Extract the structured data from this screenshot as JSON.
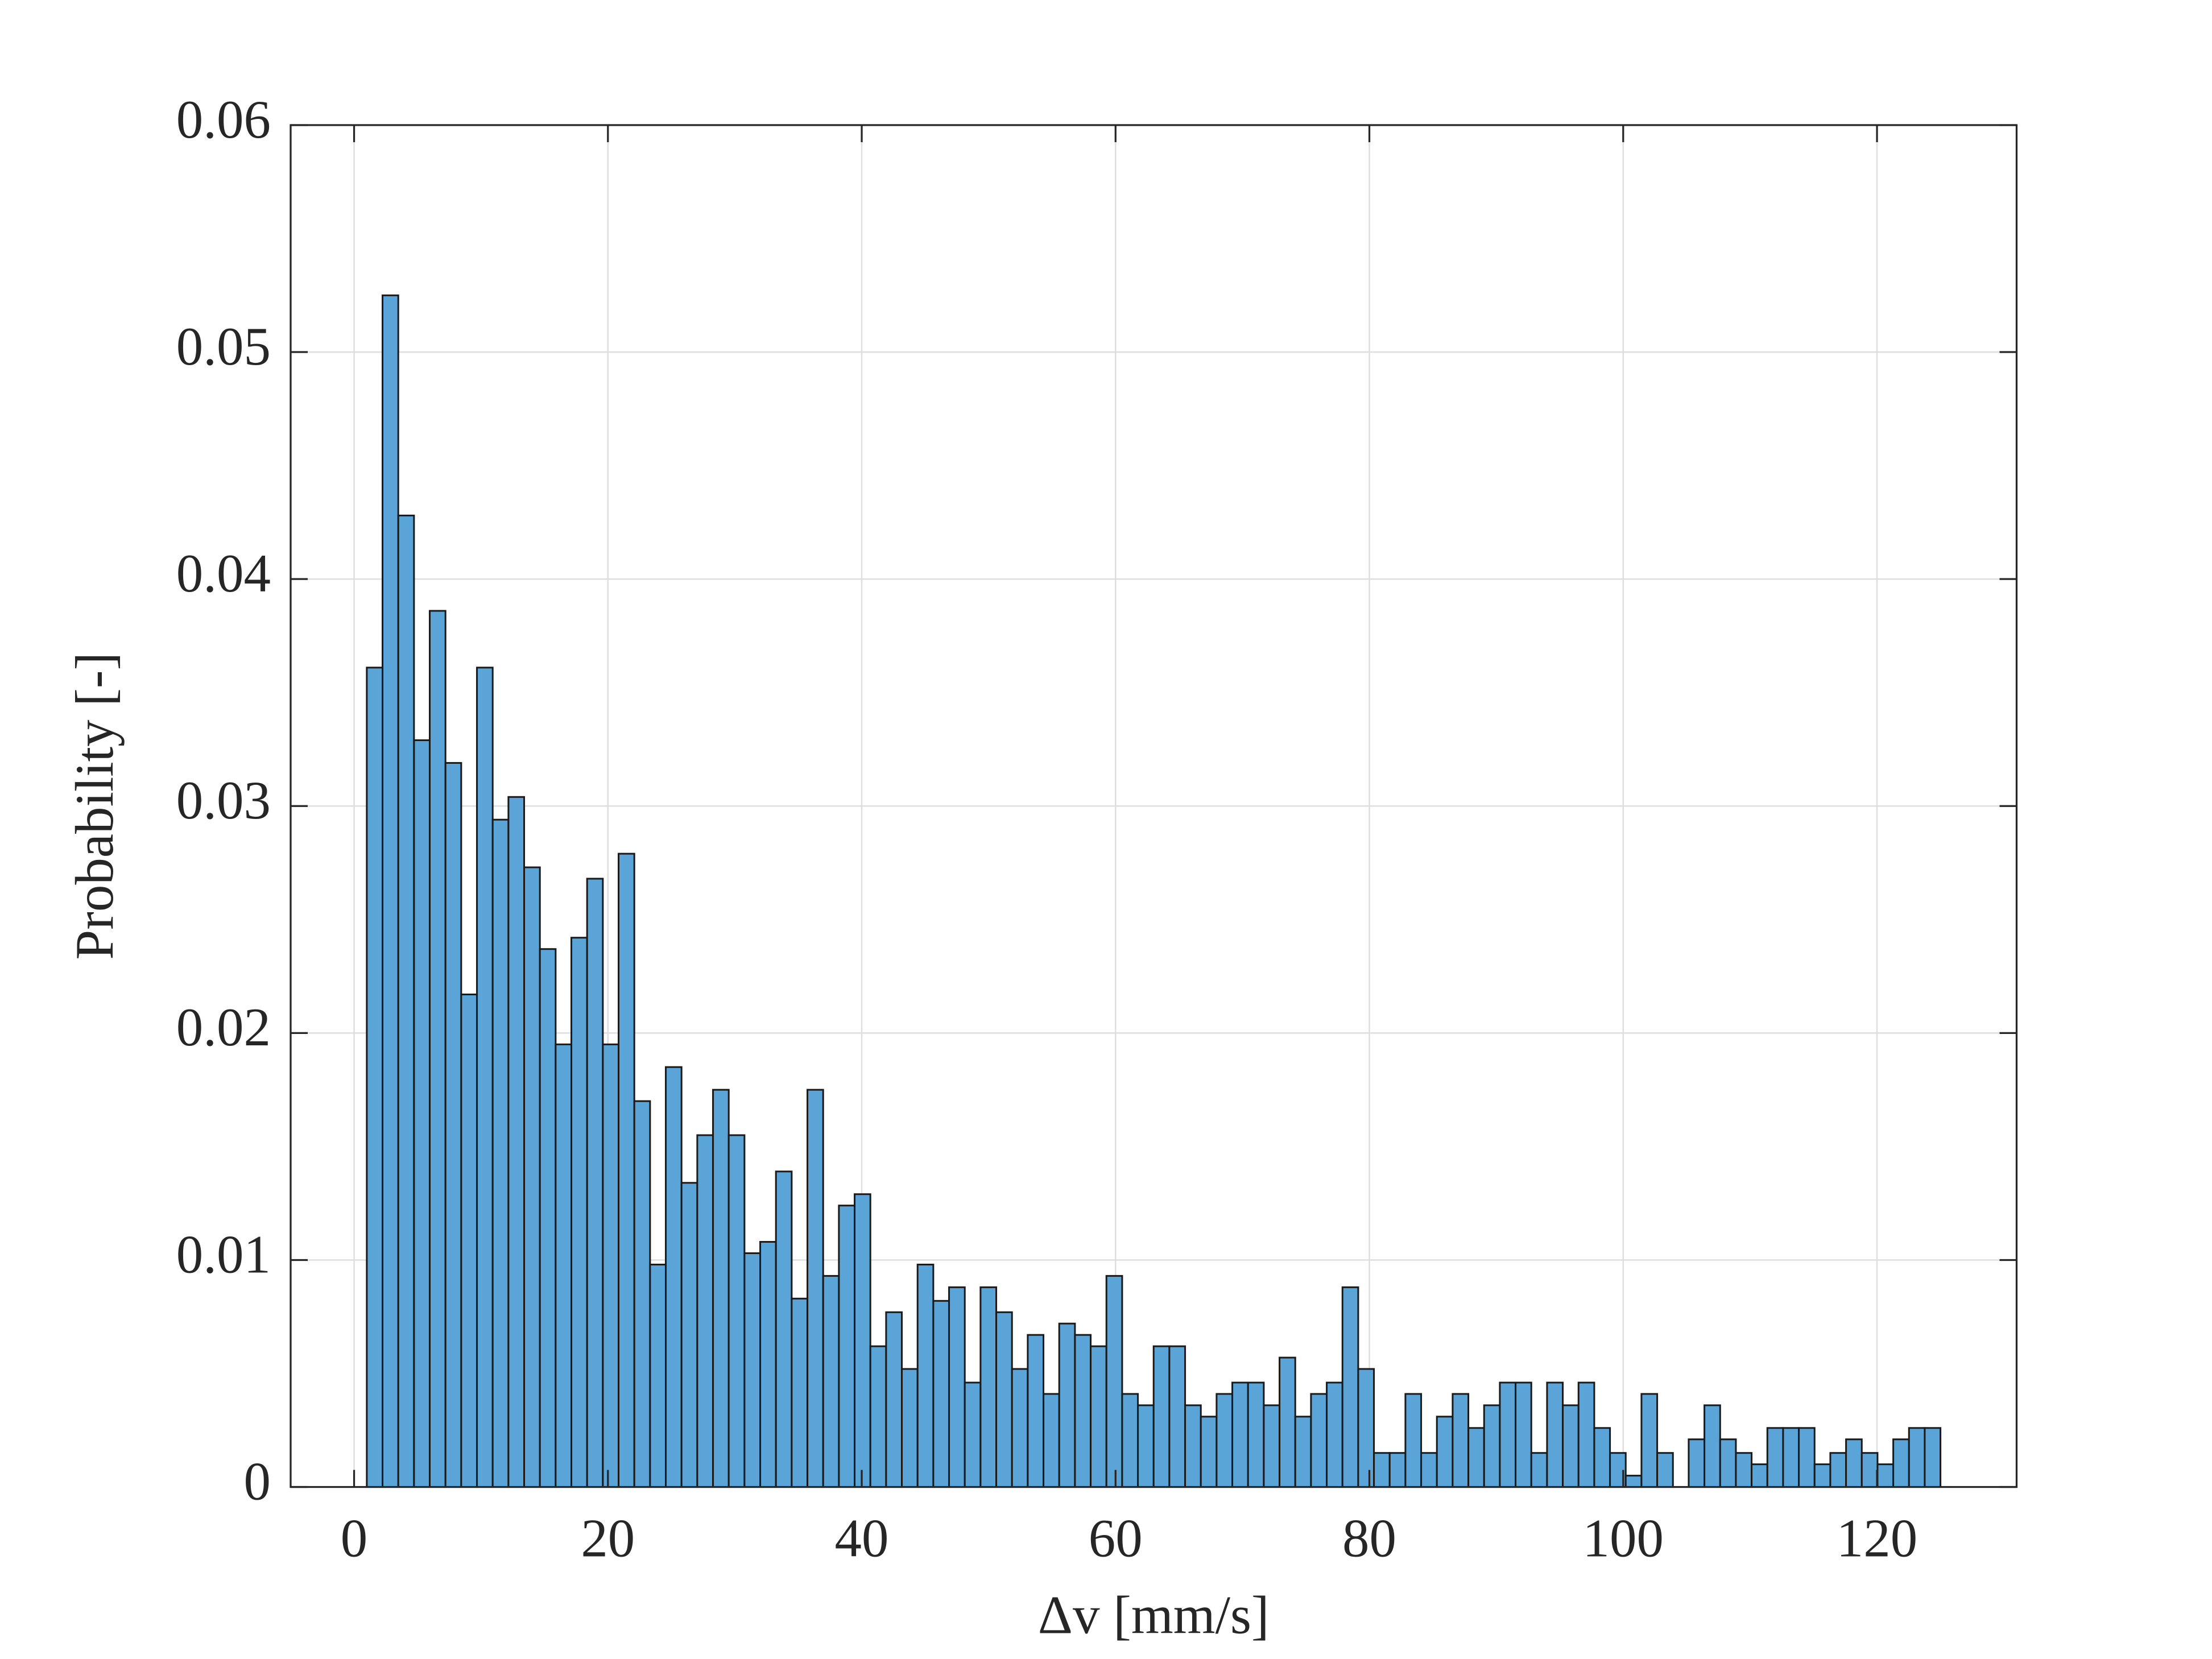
{
  "chart_data": {
    "type": "histogram",
    "xlabel": "Δv [mm/s]",
    "ylabel": "Probability [-]",
    "color": "#5ba4d7",
    "edgecolor": "#1a1a1a",
    "grid": true,
    "xlim": [
      -5,
      131
    ],
    "ylim": [
      0,
      0.06
    ],
    "xticks": [
      0,
      20,
      40,
      60,
      80,
      100,
      120
    ],
    "yticks": [
      0,
      0.01,
      0.02,
      0.03,
      0.04,
      0.05,
      0.06
    ],
    "bins": [
      1,
      2.24,
      3.48,
      4.72,
      5.96,
      7.2,
      8.44,
      9.68,
      10.92,
      12.16,
      13.4,
      14.64,
      15.88,
      17.12,
      18.36,
      19.6,
      20.84,
      22.08,
      23.32,
      24.56,
      25.8,
      27.04,
      28.28,
      29.52,
      30.76,
      32,
      33.24,
      34.48,
      35.72,
      36.96,
      38.2,
      39.44,
      40.68,
      41.92,
      43.16,
      44.4,
      45.64,
      46.88,
      48.12,
      49.36,
      50.6,
      51.84,
      53.08,
      54.32,
      55.56,
      56.8,
      58.04,
      59.28,
      60.52,
      61.76,
      63,
      64.24,
      65.48,
      66.72,
      67.96,
      69.2,
      70.44,
      71.68,
      72.92,
      74.16,
      75.4,
      76.64,
      77.88,
      79.12,
      80.36,
      81.6,
      82.84,
      84.08,
      85.32,
      86.56,
      87.8,
      89.04,
      90.28,
      91.52,
      92.76,
      94,
      95.24,
      96.48,
      97.72,
      98.96,
      100.2,
      101.44,
      102.68,
      103.92,
      105.16,
      106.4,
      107.64,
      108.88,
      110.12,
      111.36,
      112.6,
      113.84,
      115.08,
      116.32,
      117.56,
      118.8,
      120.04,
      121.28,
      122.52,
      123.76,
      125
    ],
    "values": [
      0.0361,
      0.0525,
      0.0428,
      0.0329,
      0.0386,
      0.0319,
      0.0217,
      0.0361,
      0.0294,
      0.0304,
      0.0273,
      0.0237,
      0.0195,
      0.0242,
      0.0268,
      0.0195,
      0.0279,
      0.017,
      0.0098,
      0.0185,
      0.0134,
      0.0155,
      0.0175,
      0.0155,
      0.0103,
      0.0108,
      0.0139,
      0.0083,
      0.0175,
      0.0093,
      0.0124,
      0.0129,
      0.0062,
      0.0077,
      0.0052,
      0.0098,
      0.0082,
      0.0088,
      0.0046,
      0.0088,
      0.0077,
      0.0052,
      0.0067,
      0.0041,
      0.0072,
      0.0067,
      0.0062,
      0.0093,
      0.0041,
      0.0036,
      0.0062,
      0.0062,
      0.0036,
      0.0031,
      0.0041,
      0.0046,
      0.0046,
      0.0036,
      0.0057,
      0.0031,
      0.0041,
      0.0046,
      0.0088,
      0.0052,
      0.0015,
      0.0015,
      0.0041,
      0.0015,
      0.0031,
      0.0041,
      0.0026,
      0.0036,
      0.0046,
      0.0046,
      0.0015,
      0.0046,
      0.0036,
      0.0046,
      0.0026,
      0.0015,
      0.0005,
      0.0041,
      0.0015,
      0,
      0.0021,
      0.0036,
      0.0021,
      0.0015,
      0.001,
      0.0026,
      0.0026,
      0.0026,
      0.001,
      0.0015,
      0.0021,
      0.0015,
      0.001,
      0.0021,
      0.0026,
      0.0026
    ]
  }
}
